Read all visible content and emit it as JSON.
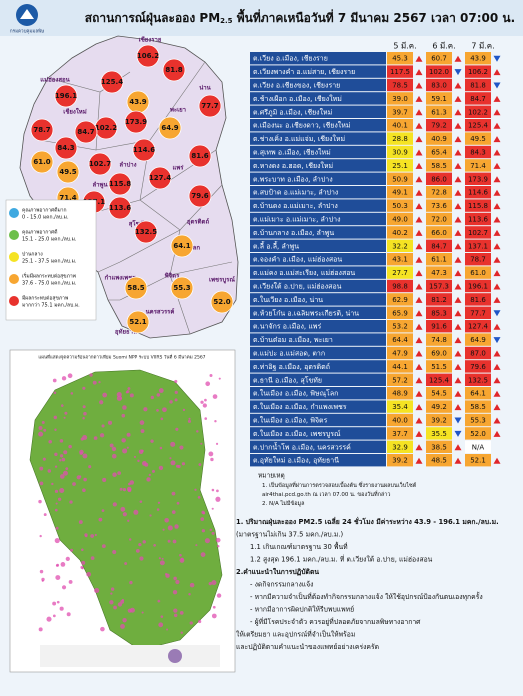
{
  "header": {
    "title_pre": "สถานการณ์ฝุ่นละออง PM",
    "title_sub": "2.5",
    "title_post": " พื้นที่ภาคเหนือวันที่ 7 มีนาคม 2567 เวลา 07:00 น.",
    "logo_text": "กรมควบคุมมลพิษ"
  },
  "legend": [
    {
      "name": "คุณภาพอากาศดีมาก",
      "range": "0 - 15.0 มคก./ลบ.ม.",
      "color": "#3fa9e0",
      "min": 0,
      "max": 15.0
    },
    {
      "name": "คุณภาพอากาศดี",
      "range": "15.1 - 25.0 มคก./ลบ.ม.",
      "color": "#6cbf4a",
      "min": 15.1,
      "max": 25.0
    },
    {
      "name": "ปานกลาง",
      "range": "25.1 - 37.5 มคก./ลบ.ม.",
      "color": "#f5e323",
      "min": 25.1,
      "max": 37.5
    },
    {
      "name": "เริ่มมีผลกระทบต่อสุขภาพ",
      "range": "37.6 - 75.0 มคก./ลบ.ม.",
      "color": "#f7a631",
      "min": 37.6,
      "max": 75.0
    },
    {
      "name": "มีผลกระทบต่อสุขภาพ",
      "range": "มากกว่า 75.1 มคก./ลบ.ม.",
      "color": "#e8322d",
      "min": 75.1
    }
  ],
  "table": {
    "columns": [
      "5 มี.ค.",
      "6 มี.ค.",
      "7 มี.ค."
    ],
    "rows": [
      {
        "station": "ต.เวียง อ.เมือง, เชียงราย",
        "values": [
          "45.3",
          "60.7",
          "43.9"
        ],
        "trend": [
          "up",
          "up",
          "down"
        ]
      },
      {
        "station": "ต.เวียงพางคำ อ.แม่สาย, เชียงราย",
        "values": [
          "117.5",
          "102.0",
          "106.2"
        ],
        "trend": [
          "up",
          "down",
          "up"
        ]
      },
      {
        "station": "ต.เวียง อ.เชียงของ, เชียงราย",
        "values": [
          "78.5",
          "83.0",
          "81.8"
        ],
        "trend": [
          "up",
          "up",
          "down"
        ]
      },
      {
        "station": "ต.ช้างเผือก อ.เมือง, เชียงใหม่",
        "values": [
          "39.0",
          "59.1",
          "84.7"
        ],
        "trend": [
          "up",
          "up",
          "up"
        ]
      },
      {
        "station": "ต.ศรีภูมิ อ.เมือง, เชียงใหม่",
        "values": [
          "39.7",
          "61.3",
          "102.2"
        ],
        "trend": [
          "up",
          "up",
          "up"
        ]
      },
      {
        "station": "ต.เมืองนะ อ.เชียงดาว, เชียงใหม่",
        "values": [
          "40.1",
          "79.2",
          "125.4"
        ],
        "trend": [
          "up",
          "up",
          "up"
        ]
      },
      {
        "station": "ต.ช่างเคิ่ง อ.แม่แจ่ม, เชียงใหม่",
        "values": [
          "28.8",
          "40.9",
          "49.5"
        ],
        "trend": [
          "up",
          "up",
          "up"
        ]
      },
      {
        "station": "ต.สุเทพ อ.เมือง, เชียงใหม่",
        "values": [
          "30.9",
          "65.4",
          "84.3"
        ],
        "trend": [
          "up",
          "up",
          "up"
        ]
      },
      {
        "station": "ต.หางดง อ.ฮอด, เชียงใหม่",
        "values": [
          "25.1",
          "58.5",
          "71.4"
        ],
        "trend": [
          "up",
          "up",
          "up"
        ]
      },
      {
        "station": "ต.พระบาท อ.เมือง, ลำปาง",
        "values": [
          "50.9",
          "86.0",
          "173.9"
        ],
        "trend": [
          "up",
          "up",
          "up"
        ]
      },
      {
        "station": "ต.สบป้าด อ.แม่เมาะ, ลำปาง",
        "values": [
          "49.1",
          "72.8",
          "114.6"
        ],
        "trend": [
          "up",
          "up",
          "up"
        ]
      },
      {
        "station": "ต.บ้านดง อ.แม่เมาะ, ลำปาง",
        "values": [
          "50.3",
          "73.6",
          "115.8"
        ],
        "trend": [
          "up",
          "up",
          "up"
        ]
      },
      {
        "station": "ต.แม่เมาะ อ.แม่เมาะ, ลำปาง",
        "values": [
          "49.0",
          "72.0",
          "113.6"
        ],
        "trend": [
          "up",
          "up",
          "up"
        ]
      },
      {
        "station": "ต.บ้านกลาง อ.เมือง, ลำพูน",
        "values": [
          "40.2",
          "66.0",
          "102.7"
        ],
        "trend": [
          "up",
          "up",
          "up"
        ]
      },
      {
        "station": "ต.ลี้ อ.ลี้, ลำพูน",
        "values": [
          "32.2",
          "84.7",
          "137.1"
        ],
        "trend": [
          "up",
          "up",
          "up"
        ]
      },
      {
        "station": "ต.จองคำ อ.เมือง, แม่ฮ่องสอน",
        "values": [
          "43.1",
          "61.1",
          "78.7"
        ],
        "trend": [
          "up",
          "up",
          "up"
        ]
      },
      {
        "station": "ต.แม่คง อ.แม่สะเรียง, แม่ฮ่องสอน",
        "values": [
          "27.7",
          "47.3",
          "61.0"
        ],
        "trend": [
          "up",
          "up",
          "up"
        ]
      },
      {
        "station": "ต.เวียงใต้ อ.ปาย, แม่ฮ่องสอน",
        "values": [
          "98.8",
          "157.3",
          "196.1"
        ],
        "trend": [
          "up",
          "up",
          "up"
        ]
      },
      {
        "station": "ต.ในเวียง อ.เมือง, น่าน",
        "values": [
          "62.9",
          "81.2",
          "81.6"
        ],
        "trend": [
          "up",
          "up",
          "up"
        ]
      },
      {
        "station": "ต.ห้วยโก๋น อ.เฉลิมพระเกียรติ, น่าน",
        "values": [
          "65.9",
          "85.3",
          "77.7"
        ],
        "trend": [
          "up",
          "up",
          "down"
        ]
      },
      {
        "station": "ต.นาจักร อ.เมือง, แพร่",
        "values": [
          "53.2",
          "91.6",
          "127.4"
        ],
        "trend": [
          "up",
          "up",
          "up"
        ]
      },
      {
        "station": "ต.บ้านต๋อม อ.เมือง, พะเยา",
        "values": [
          "64.4",
          "74.8",
          "64.9"
        ],
        "trend": [
          "up",
          "up",
          "down"
        ]
      },
      {
        "station": "ต.แม่ปะ อ.แม่สอด, ตาก",
        "values": [
          "47.9",
          "69.0",
          "87.0"
        ],
        "trend": [
          "up",
          "up",
          "up"
        ]
      },
      {
        "station": "ต.ท่าอิฐ อ.เมือง, อุตรดิตถ์",
        "values": [
          "44.1",
          "51.5",
          "79.6"
        ],
        "trend": [
          "up",
          "up",
          "up"
        ]
      },
      {
        "station": "ต.ธานี อ.เมือง, สุโขทัย",
        "values": [
          "57.2",
          "125.4",
          "132.5"
        ],
        "trend": [
          "up",
          "up",
          "up"
        ]
      },
      {
        "station": "ต.ในเมือง อ.เมือง, พิษณุโลก",
        "values": [
          "48.9",
          "54.5",
          "64.1"
        ],
        "trend": [
          "up",
          "up",
          "up"
        ]
      },
      {
        "station": "ต.ในเมือง อ.เมือง, กำแพงเพชร",
        "values": [
          "35.4",
          "49.2",
          "58.5"
        ],
        "trend": [
          "up",
          "up",
          "up"
        ]
      },
      {
        "station": "ต.ในเมือง อ.เมือง, พิจิตร",
        "values": [
          "40.0",
          "39.2",
          "55.3"
        ],
        "trend": [
          "up",
          "down",
          "up"
        ]
      },
      {
        "station": "ต.ในเมือง อ.เมือง, เพชรบูรณ์",
        "values": [
          "37.7",
          "35.5",
          "52.0"
        ],
        "trend": [
          "up",
          "down",
          "up"
        ]
      },
      {
        "station": "ต.ปากน้ำโพ อ.เมือง, นครสวรรค์",
        "values": [
          "32.9",
          "38.5",
          "N/A"
        ],
        "trend": [
          "up",
          "up",
          null
        ]
      },
      {
        "station": "ต.อุทัยใหม่ อ.เมือง, อุทัยธานี",
        "values": [
          "39.2",
          "48.5",
          "52.1"
        ],
        "trend": [
          "up",
          "up",
          "up"
        ]
      }
    ]
  },
  "map": {
    "provinces": [
      "เชียงราย",
      "แม่ฮ่องสอน",
      "เชียงใหม่",
      "พะเยา",
      "น่าน",
      "ลำปาง",
      "ลำพูน",
      "แพร่",
      "อุตรดิตถ์",
      "สุโขทัย",
      "ตาก",
      "พิษณุโลก",
      "กำแพงเพชร",
      "พิจิตร",
      "เพชรบูรณ์",
      "นครสวรรค์",
      "อุทัยธานี"
    ]
  },
  "hotspot_map": {
    "caption": "แผนที่แสดงจุดความร้อนจากดาวเทียม Suomi NPP ระบบ VIIRS วันที่ 6 มีนาคม 2567"
  },
  "notes": {
    "heading": "หมายเหตุ",
    "lines": [
      "1. เป็นข้อมูลที่ผ่านการตรวจสอบเบื้องต้น ซึ่งรายงานผลบนเว็บไซต์",
      "air4thai.pcd.go.th ณ เวลา 07.00 น. ของวันที่กล่าว",
      "2. N/A ไม่มีข้อมูล"
    ]
  },
  "summary": {
    "lines": [
      "1. ปริมาณฝุ่นละออง PM2.5 เฉลี่ย 24 ชั่วโมง มีค่าระหว่าง 43.9 - 196.1 มคก./ลบ.ม.",
      "(มาตรฐานไม่เกิน 37.5 มคก./ลบ.ม.)",
      "1.1 เกินเกณฑ์มาตรฐาน 30 พื้นที่",
      "1.2 สูงสุด 196.1 มคก./ลบ.ม. ที่ ต.เวียงใต้ อ.ปาย, แม่ฮ่องสอน",
      "2.คำแนะนำในการปฏิบัติตน",
      "- งดกิจกรรมกลางแจ้ง",
      "- หากมีความจำเป็นที่ต้องทำกิจกรรมกลางแจ้ง ให้ใช้อุปกรณ์ป้องกันตนเองทุกครั้ง",
      "- หากมีอาการผิดปกติให้รีบพบแพทย์",
      "- ผู้ที่มีโรคประจำตัว ควรอยู่ที่ปลอดภัยจากมลพิษทางอากาศ",
      "ให้เตรียมยา และอุปกรณ์ที่จำเป็นให้พร้อม",
      "และปฏิบัติตามคำแนะนำของแพทย์อย่างเคร่งครัด"
    ]
  }
}
